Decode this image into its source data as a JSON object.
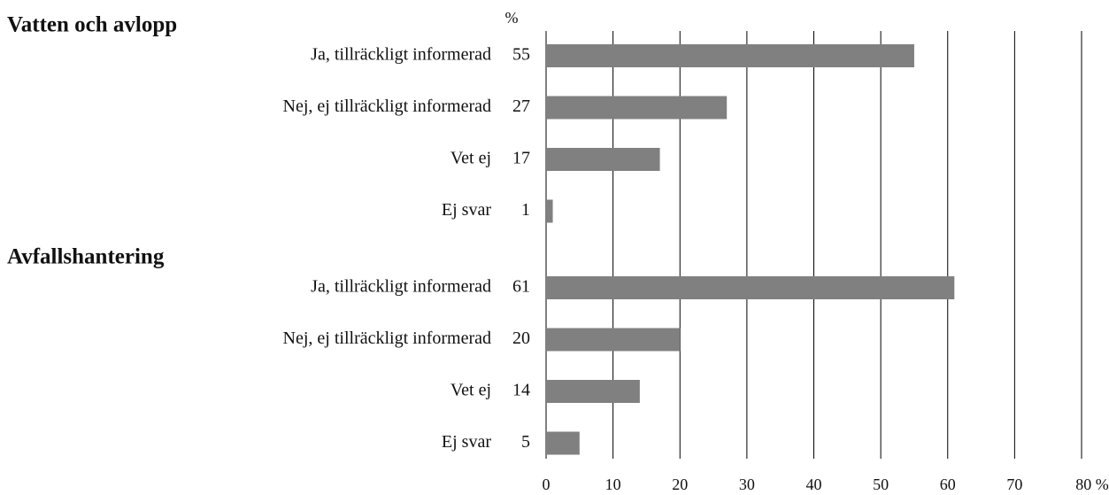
{
  "chart_data": {
    "type": "bar",
    "orientation": "horizontal",
    "value_column_header": "%",
    "color": "#808080",
    "grid": true,
    "xlim": [
      0,
      80
    ],
    "xticks": [
      0,
      10,
      20,
      30,
      40,
      50,
      60,
      70,
      {
        "value": 80,
        "label": "80 %"
      }
    ],
    "groups": [
      {
        "name": "Vatten och avlopp",
        "categories": [
          "Ja, tillräckligt informerad",
          "Nej, ej tillräckligt informerad",
          "Vet ej",
          "Ej svar"
        ],
        "values": [
          55,
          27,
          17,
          1
        ]
      },
      {
        "name": "Avfallshantering",
        "categories": [
          "Ja, tillräckligt informerad",
          "Nej, ej tillräckligt informerad",
          "Vet ej",
          "Ej svar"
        ],
        "values": [
          61,
          20,
          14,
          5
        ]
      }
    ]
  }
}
